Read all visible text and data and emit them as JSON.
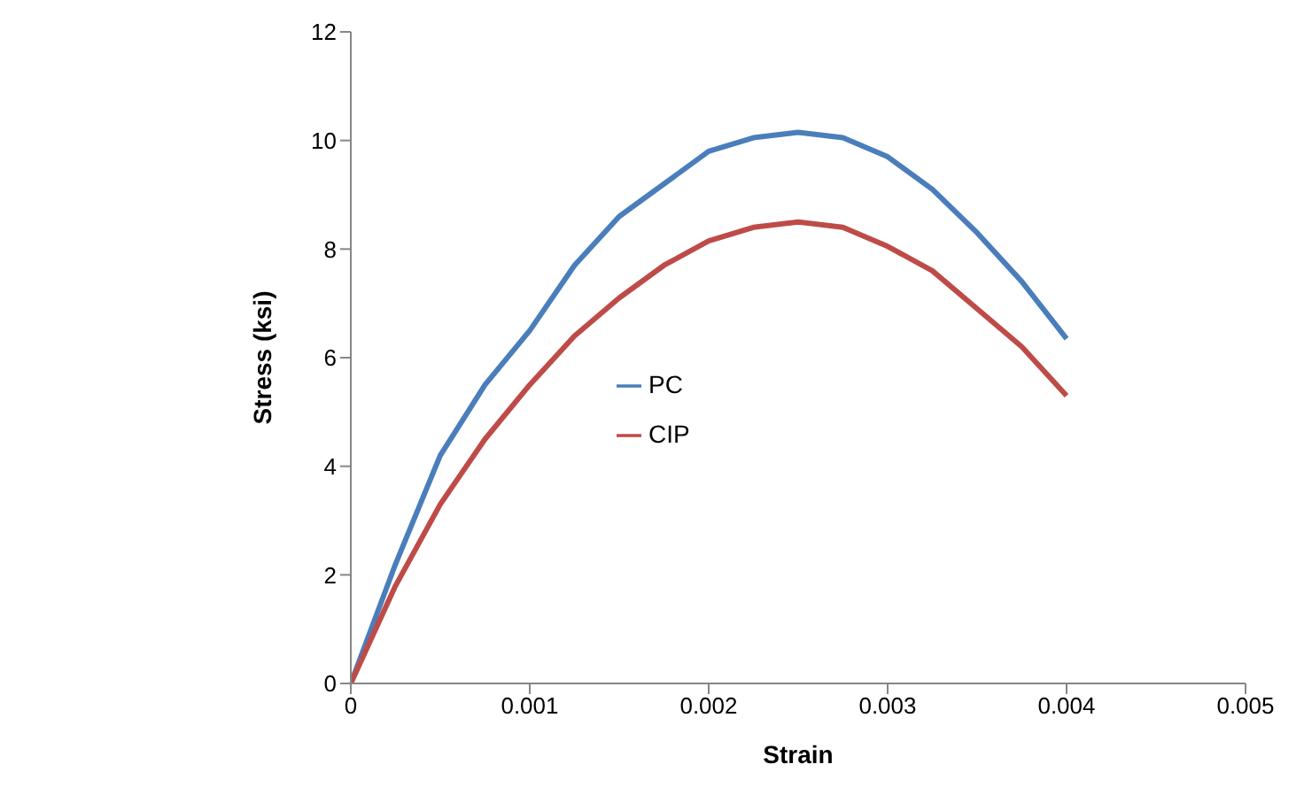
{
  "chart_data": {
    "type": "line",
    "xlabel": "Strain",
    "ylabel": "Stress (ksi)",
    "x": [
      0,
      0.00025,
      0.0005,
      0.00075,
      0.001,
      0.00125,
      0.0015,
      0.00175,
      0.002,
      0.00225,
      0.0025,
      0.00275,
      0.003,
      0.00325,
      0.0035,
      0.00375,
      0.004
    ],
    "series": [
      {
        "name": "PC",
        "color": "#4a7ebb",
        "values": [
          0,
          2.2,
          4.2,
          5.5,
          6.5,
          7.7,
          8.6,
          9.2,
          9.8,
          10.05,
          10.15,
          10.05,
          9.7,
          9.1,
          8.3,
          7.4,
          6.35
        ]
      },
      {
        "name": "CIP",
        "color": "#be4b48",
        "values": [
          0,
          1.8,
          3.3,
          4.5,
          5.5,
          6.4,
          7.1,
          7.7,
          8.15,
          8.4,
          8.5,
          8.4,
          8.05,
          7.6,
          6.9,
          6.2,
          5.3
        ]
      }
    ],
    "xlim": [
      0,
      0.005
    ],
    "xticks": [
      0,
      0.001,
      0.002,
      0.003,
      0.004,
      0.005
    ],
    "ylim": [
      0,
      12
    ],
    "yticks": [
      0,
      2,
      4,
      6,
      8,
      10,
      12
    ],
    "grid": false,
    "legend": "center",
    "marker": "none",
    "line_style": "solid"
  }
}
